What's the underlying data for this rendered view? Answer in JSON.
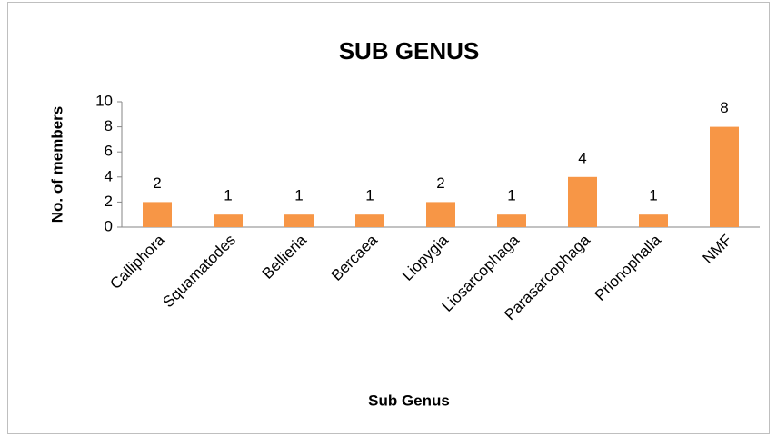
{
  "chart_data": {
    "type": "bar",
    "title": "SUB GENUS",
    "x_label": "Sub Genus",
    "y_label": "No. of members",
    "categories": [
      "Calliphora",
      "Squamatodes",
      "Bellieria",
      "Bercaea",
      "Liopygia",
      "Liosarcophaga",
      "Parasarcophaga",
      "Prionophalla",
      "NMF"
    ],
    "values": [
      2,
      1,
      1,
      1,
      2,
      1,
      4,
      1,
      8
    ],
    "color": "#f79646",
    "ylim": [
      0,
      10
    ],
    "yticks": [
      0,
      2,
      4,
      6,
      8,
      10
    ],
    "grid": false,
    "data_labels": true
  }
}
